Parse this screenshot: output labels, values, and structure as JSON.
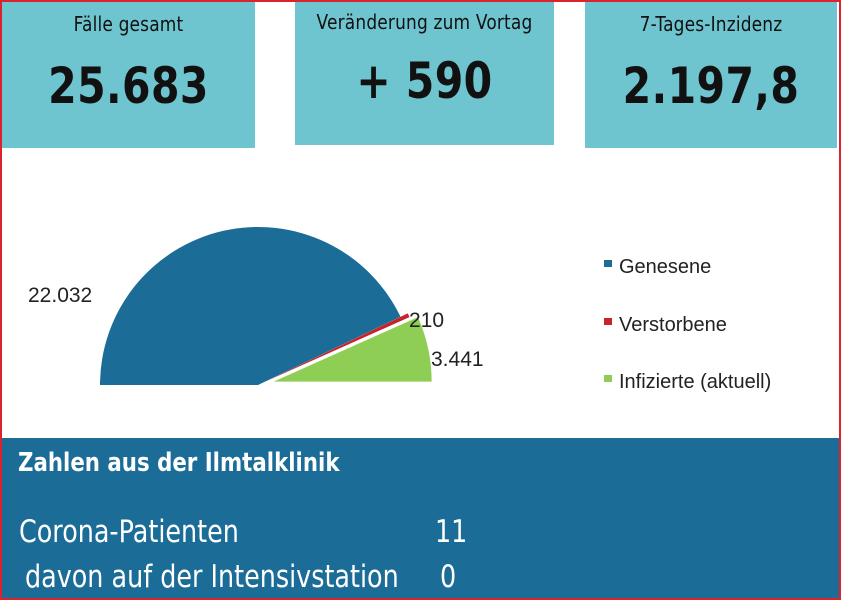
{
  "kpis": [
    {
      "label": "Fälle gesamt",
      "value": "25.683"
    },
    {
      "label": "Veränderung zum Vortag",
      "value": "+ 590"
    },
    {
      "label": "7-Tages-Inzidenz",
      "value": "2.197,8"
    }
  ],
  "chart_data": {
    "type": "pie",
    "subtype": "half-pie (upper half), exploded",
    "title": "",
    "labels": [
      "Genesene",
      "Verstorbene",
      "Infizierte (aktuell)"
    ],
    "values": [
      22032,
      210,
      3441
    ],
    "value_labels": [
      "22.032",
      "210",
      "3.441"
    ],
    "colors": [
      "#1b6c97",
      "#c8232c",
      "#8fce55"
    ],
    "legend_position": "right",
    "grid": false
  },
  "clinic": {
    "title": "Zahlen aus der Ilmtalklinik",
    "rows": [
      {
        "label": "Corona-Patienten",
        "value": "11"
      },
      {
        "label": "davon auf der Intensivstation",
        "value": "0"
      }
    ]
  },
  "colors": {
    "kpi_background": "#6ec4cf",
    "clinic_background": "#1b6c97",
    "frame_border": "#d9232e"
  }
}
